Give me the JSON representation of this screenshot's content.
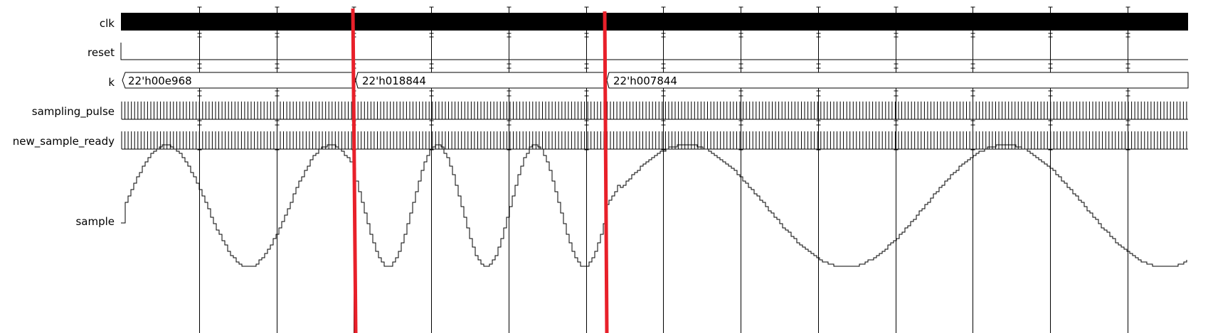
{
  "waveform_viewer": {
    "signals": [
      {
        "name": "clk",
        "kind": "clock"
      },
      {
        "name": "reset",
        "kind": "bit"
      },
      {
        "name": "k",
        "kind": "bus",
        "values": [
          "22'h00e968",
          "22'h018844",
          "22'h007844"
        ]
      },
      {
        "name": "sampling_pulse",
        "kind": "pulse_train"
      },
      {
        "name": "new_sample_ready",
        "kind": "pulse_train"
      },
      {
        "name": "sample",
        "kind": "analog"
      }
    ],
    "markers": {
      "count": 2,
      "color": "#e8202a"
    },
    "colors": {
      "trace": "#000000",
      "background": "#ffffff",
      "marker": "#e8202a"
    }
  }
}
